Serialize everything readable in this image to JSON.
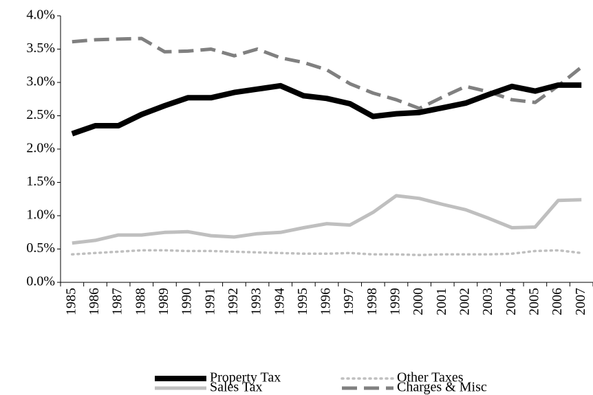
{
  "chart_data": {
    "type": "line",
    "categories": [
      "1985",
      "1986",
      "1987",
      "1988",
      "1989",
      "1990",
      "1991",
      "1992",
      "1993",
      "1994",
      "1995",
      "1996",
      "1997",
      "1998",
      "1999",
      "2000",
      "2001",
      "2002",
      "2003",
      "2004",
      "2005",
      "2006",
      "2007"
    ],
    "series": [
      {
        "name": "Property Tax",
        "color": "#000000",
        "style": "solid",
        "values": [
          2.23,
          2.35,
          2.35,
          2.52,
          2.65,
          2.77,
          2.77,
          2.85,
          2.9,
          2.95,
          2.8,
          2.76,
          2.68,
          2.49,
          2.53,
          2.55,
          2.62,
          2.69,
          2.82,
          2.94,
          2.87,
          2.96,
          2.96
        ]
      },
      {
        "name": "Other Taxes",
        "color": "#bfbfbf",
        "style": "dotted",
        "values": [
          0.42,
          0.44,
          0.46,
          0.48,
          0.48,
          0.47,
          0.47,
          0.46,
          0.45,
          0.44,
          0.43,
          0.43,
          0.44,
          0.42,
          0.42,
          0.41,
          0.42,
          0.42,
          0.42,
          0.43,
          0.47,
          0.48,
          0.44
        ]
      },
      {
        "name": "Sales Tax",
        "color": "#bfbfbf",
        "style": "solid",
        "values": [
          0.59,
          0.63,
          0.71,
          0.71,
          0.75,
          0.76,
          0.7,
          0.68,
          0.73,
          0.75,
          0.82,
          0.88,
          0.86,
          1.05,
          1.3,
          1.26,
          1.17,
          1.09,
          0.96,
          0.82,
          0.83,
          1.23,
          1.24
        ]
      },
      {
        "name": "Charges & Misc",
        "color": "#808080",
        "style": "dashed",
        "values": [
          3.61,
          3.64,
          3.65,
          3.66,
          3.46,
          3.47,
          3.5,
          3.4,
          3.5,
          3.37,
          3.3,
          3.19,
          2.98,
          2.84,
          2.74,
          2.61,
          2.78,
          2.94,
          2.86,
          2.74,
          2.7,
          2.95,
          3.23
        ]
      }
    ],
    "ylim": [
      0,
      4
    ],
    "yticks": [
      {
        "value": 0,
        "label": "0.0%"
      },
      {
        "value": 0.5,
        "label": "0.5%"
      },
      {
        "value": 1,
        "label": "1.0%"
      },
      {
        "value": 1.5,
        "label": "1.5%"
      },
      {
        "value": 2,
        "label": "2.0%"
      },
      {
        "value": 2.5,
        "label": "2.5%"
      },
      {
        "value": 3,
        "label": "3.0%"
      },
      {
        "value": 3.5,
        "label": "3.5%"
      },
      {
        "value": 4,
        "label": "4.0%"
      }
    ],
    "grid": false,
    "legend": "bottom"
  }
}
